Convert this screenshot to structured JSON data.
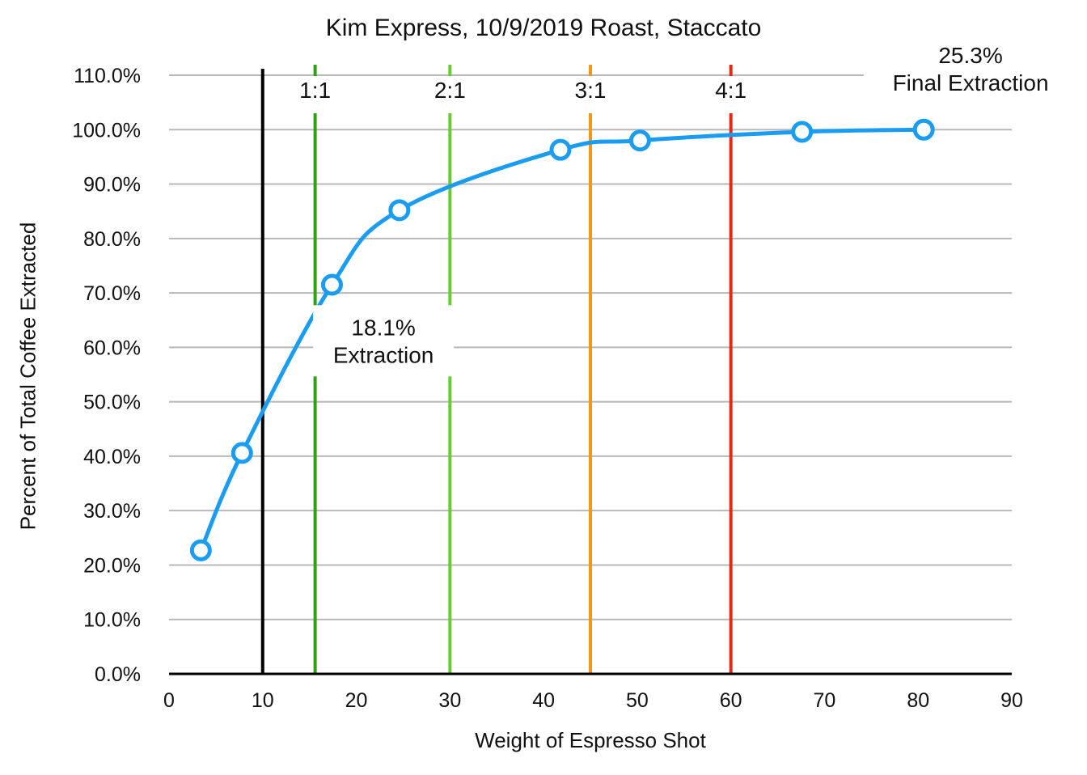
{
  "chart_data": {
    "type": "line",
    "title": "Kim Express, 10/9/2019 Roast, Staccato",
    "xlabel": "Weight of Espresso Shot",
    "ylabel": "Percent of Total Coffee Extracted",
    "xlim": [
      0,
      90
    ],
    "ylim": [
      0,
      110
    ],
    "x_ticks": [
      "0",
      "10",
      "20",
      "30",
      "40",
      "50",
      "60",
      "70",
      "80",
      "90"
    ],
    "y_ticks": [
      "0.0%",
      "10.0%",
      "20.0%",
      "30.0%",
      "40.0%",
      "50.0%",
      "60.0%",
      "70.0%",
      "80.0%",
      "90.0%",
      "100.0%",
      "110.0%"
    ],
    "grid": "horizontal",
    "series": [
      {
        "color": "#1a9cf0",
        "x": [
          3.4,
          7.8,
          17.4,
          24.6,
          41.8,
          50.3,
          67.6,
          80.6
        ],
        "y": [
          22.7,
          40.6,
          71.5,
          85.2,
          96.3,
          98.0,
          99.6,
          100.0
        ]
      }
    ],
    "vlines": [
      {
        "x": 10,
        "color": "#000000",
        "label": ""
      },
      {
        "x": 15.6,
        "color": "#2aa511",
        "label": "1:1"
      },
      {
        "x": 30,
        "color": "#66cc33",
        "label": "2:1"
      },
      {
        "x": 45,
        "color": "#f5951c",
        "label": "3:1"
      },
      {
        "x": 60,
        "color": "#e02b17",
        "label": "4:1"
      }
    ],
    "annotations": [
      {
        "lines": [
          "18.1%",
          "Extraction"
        ],
        "x": 22.9,
        "y": 61.2
      },
      {
        "lines": [
          "25.3%",
          "Final Extraction"
        ],
        "x": 85.6,
        "y": 111.2
      }
    ]
  }
}
